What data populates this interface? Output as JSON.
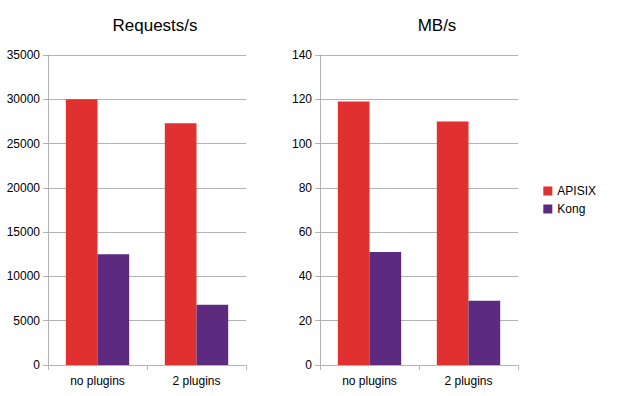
{
  "chart_data": [
    {
      "type": "bar",
      "title": "Requests/s",
      "categories": [
        "no plugins",
        "2 plugins"
      ],
      "series": [
        {
          "name": "APISIX",
          "color": "#e0302f",
          "values": [
            30000,
            27300
          ]
        },
        {
          "name": "Kong",
          "color": "#5c2a7e",
          "values": [
            12500,
            6800
          ]
        }
      ],
      "ylim": [
        0,
        35000
      ],
      "yticks": [
        0,
        5000,
        10000,
        15000,
        20000,
        25000,
        30000,
        35000
      ],
      "grid": true
    },
    {
      "type": "bar",
      "title": "MB/s",
      "categories": [
        "no plugins",
        "2 plugins"
      ],
      "series": [
        {
          "name": "APISIX",
          "color": "#e0302f",
          "values": [
            119,
            110
          ]
        },
        {
          "name": "Kong",
          "color": "#5c2a7e",
          "values": [
            51,
            29
          ]
        }
      ],
      "ylim": [
        0,
        140
      ],
      "yticks": [
        0,
        20,
        40,
        60,
        80,
        100,
        120,
        140
      ],
      "grid": true,
      "legend": "right"
    }
  ]
}
